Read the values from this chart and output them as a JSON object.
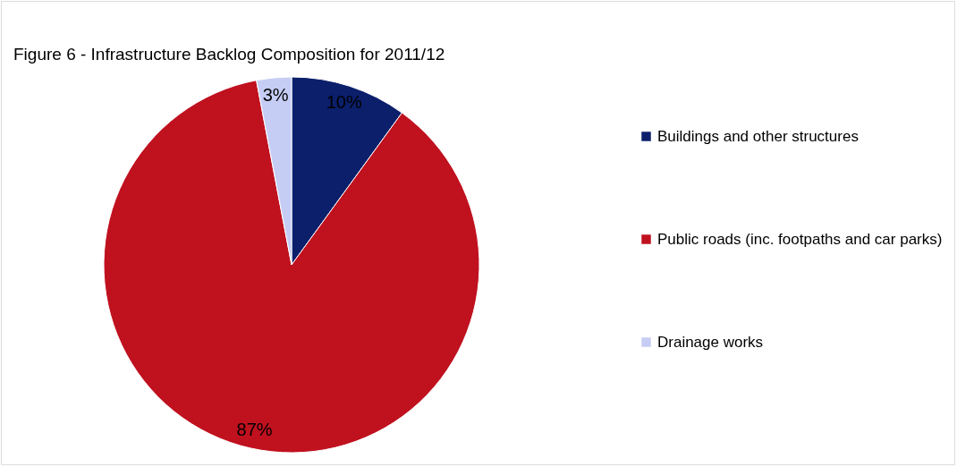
{
  "chart_data": {
    "type": "pie",
    "title": "Figure 6 - Infrastructure Backlog Composition for 2011/12",
    "categories": [
      "Buildings and other structures",
      "Public roads (inc. footpaths and car parks)",
      "Drainage works"
    ],
    "values": [
      10,
      87,
      3
    ],
    "colors": [
      "#0b1f6b",
      "#c0111f",
      "#c5cdf5"
    ],
    "value_labels": [
      "10%",
      "87%",
      "3%"
    ],
    "legend": "right"
  }
}
